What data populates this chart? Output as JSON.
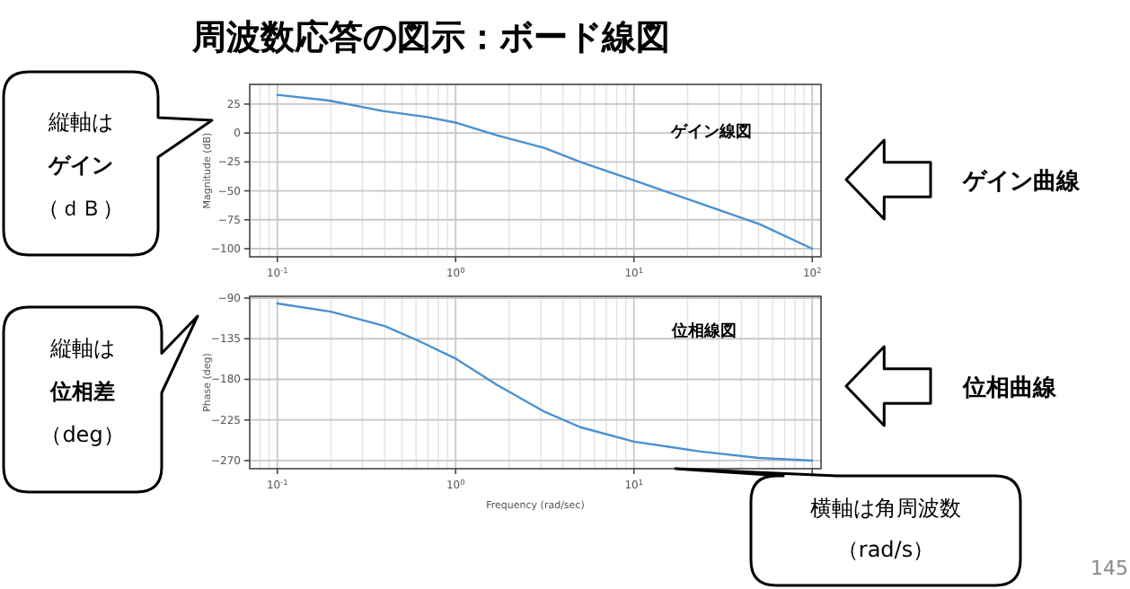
{
  "chart_data": [
    {
      "type": "line",
      "title": "周波数応答の図示：ボード線図",
      "ylabel": "Magnitude (dB)",
      "log": "x",
      "grid": true,
      "xlim": [
        0.07,
        112
      ],
      "ylim": [
        -107,
        42
      ],
      "xticks": [
        {
          "value": 0.1,
          "label": "10$^{-1}$"
        },
        {
          "value": 1,
          "label": "10$^{0}$"
        },
        {
          "value": 10,
          "label": "10$^{1}$"
        },
        {
          "value": 100,
          "label": "10$^{2}$"
        }
      ],
      "yticks": [
        25,
        0,
        -25,
        -50,
        -75,
        -100
      ],
      "x": [
        0.1,
        0.195,
        0.39,
        0.68,
        1,
        1.7,
        3.16,
        5,
        10,
        23.6,
        51,
        100
      ],
      "series": [
        {
          "color": "#4a90d0",
          "values": [
            33,
            28,
            19,
            14,
            9,
            -2,
            -13,
            -25,
            -41,
            -61,
            -79,
            -100
          ]
        }
      ],
      "annotations": [
        "ゲイン線図",
        "縦軸は",
        "ゲイン",
        "（ｄＢ）",
        "ゲイン曲線"
      ]
    },
    {
      "type": "line",
      "xlabel": "Frequency (rad/sec)",
      "ylabel": "Phase (deg)",
      "log": "x",
      "grid": true,
      "xlim": [
        0.07,
        112
      ],
      "ylim": [
        -279,
        -88
      ],
      "xticks": [
        {
          "value": 0.1,
          "label": "10$^{-1}$"
        },
        {
          "value": 1,
          "label": "10$^{0}$"
        },
        {
          "value": 10,
          "label": "10$^{1}$"
        },
        {
          "value": 100,
          "label": null
        }
      ],
      "yticks": [
        -90,
        -135,
        -180,
        -225,
        -270
      ],
      "x": [
        0.1,
        0.2,
        0.4,
        0.63,
        1,
        1.7,
        3.16,
        5,
        10,
        23.6,
        50,
        100
      ],
      "series": [
        {
          "color": "#4a90d0",
          "values": [
            -96,
            -105,
            -121,
            -138,
            -157,
            -186,
            -216,
            -233,
            -249,
            -260,
            -267,
            -270
          ]
        }
      ],
      "annotations": [
        "位相線図",
        "縦軸は",
        "位相差",
        "（deg）",
        "位相曲線",
        "横軸は角周波数",
        "（rad/s）",
        "145"
      ]
    }
  ]
}
